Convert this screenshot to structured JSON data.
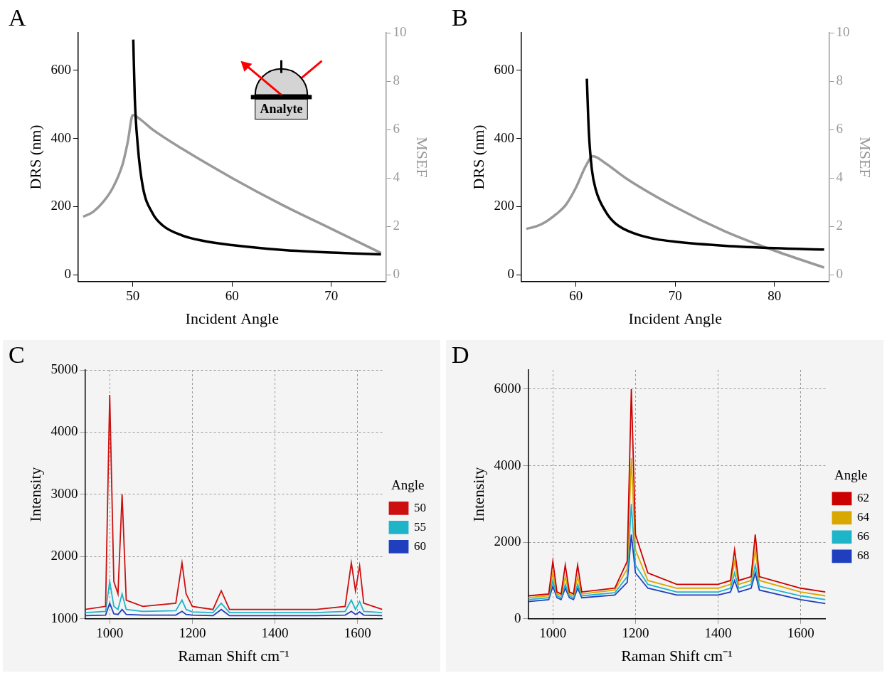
{
  "chart_data": [
    {
      "panel": "A",
      "type": "line",
      "xlabel": "Incident Angle",
      "ylabel": "DRS (nm)",
      "y2label": "MSEF",
      "annotations": [
        "Analyte"
      ],
      "grid": false,
      "xlim": [
        44.5,
        75.5
      ],
      "xticks": [
        50,
        60,
        70
      ],
      "ylim": [
        -20,
        710
      ],
      "yticks": [
        0,
        200,
        400,
        600
      ],
      "y2lim": [
        -0.28,
        10
      ],
      "y2ticks": [
        0,
        2,
        4,
        6,
        8,
        10
      ],
      "series": [
        {
          "color": "#000000",
          "x": [
            50.05,
            50.2,
            50.5,
            51,
            52,
            53,
            55,
            57,
            60,
            65,
            70,
            75
          ],
          "values": [
            690,
            520,
            380,
            260,
            180,
            145,
            115,
            100,
            87,
            73,
            65,
            60
          ]
        },
        {
          "color": "#999999",
          "axis": "y2",
          "x": [
            45,
            46,
            47,
            48,
            49,
            49.5,
            50,
            50.5,
            52,
            55,
            60,
            65,
            70,
            75
          ],
          "values": [
            2.4,
            2.6,
            3.0,
            3.6,
            4.6,
            5.5,
            6.6,
            6.5,
            6.0,
            5.2,
            4.0,
            2.9,
            1.9,
            0.9
          ]
        }
      ]
    },
    {
      "panel": "B",
      "type": "line",
      "xlabel": "Incident Angle",
      "ylabel": "DRS (nm)",
      "y2label": "MSEF",
      "grid": false,
      "xlim": [
        54.5,
        85.5
      ],
      "xticks": [
        60,
        70,
        80
      ],
      "ylim": [
        -20,
        710
      ],
      "yticks": [
        0,
        200,
        400,
        600
      ],
      "y2lim": [
        -0.28,
        10
      ],
      "y2ticks": [
        0,
        2,
        4,
        6,
        8,
        10
      ],
      "series": [
        {
          "color": "#000000",
          "x": [
            61.1,
            61.3,
            61.6,
            62,
            63,
            64,
            66,
            68,
            70,
            75,
            80,
            85
          ],
          "values": [
            575,
            420,
            310,
            250,
            185,
            150,
            120,
            105,
            97,
            85,
            78,
            74
          ]
        },
        {
          "color": "#999999",
          "axis": "y2",
          "x": [
            55,
            56,
            57,
            58,
            59,
            60,
            61,
            61.7,
            63,
            65,
            70,
            75,
            80,
            85
          ],
          "values": [
            1.9,
            2.0,
            2.2,
            2.5,
            2.9,
            3.6,
            4.5,
            4.9,
            4.6,
            4.0,
            2.8,
            1.8,
            1.0,
            0.3
          ]
        }
      ]
    },
    {
      "panel": "C",
      "type": "line",
      "xlabel": "Raman Shift cm⁻¹",
      "ylabel": "Intensity",
      "legend_title": "Angle",
      "legend": "right",
      "grid": true,
      "xlim": [
        940,
        1660
      ],
      "xticks": [
        1000,
        1200,
        1400,
        1600
      ],
      "ylim": [
        1000,
        5000
      ],
      "yticks": [
        1000,
        2000,
        3000,
        4000,
        5000
      ],
      "x": [
        940,
        990,
        1000,
        1010,
        1020,
        1030,
        1040,
        1080,
        1160,
        1175,
        1185,
        1200,
        1250,
        1270,
        1290,
        1400,
        1500,
        1570,
        1585,
        1595,
        1605,
        1615,
        1660
      ],
      "series": [
        {
          "name": "50",
          "color": "#cc1010",
          "values": [
            1150,
            1200,
            4600,
            1600,
            1400,
            3000,
            1300,
            1200,
            1250,
            1900,
            1400,
            1200,
            1150,
            1450,
            1150,
            1150,
            1150,
            1200,
            1900,
            1450,
            1850,
            1250,
            1150
          ]
        },
        {
          "name": "55",
          "color": "#1fb5c9",
          "values": [
            1100,
            1120,
            1600,
            1200,
            1150,
            1400,
            1150,
            1120,
            1130,
            1300,
            1150,
            1110,
            1100,
            1250,
            1100,
            1100,
            1100,
            1120,
            1300,
            1150,
            1280,
            1120,
            1100
          ]
        },
        {
          "name": "60",
          "color": "#1f3fbf",
          "values": [
            1050,
            1060,
            1250,
            1080,
            1070,
            1150,
            1070,
            1060,
            1060,
            1120,
            1070,
            1060,
            1050,
            1150,
            1050,
            1050,
            1050,
            1060,
            1120,
            1070,
            1110,
            1060,
            1050
          ]
        }
      ]
    },
    {
      "panel": "D",
      "type": "line",
      "xlabel": "Raman Shift cm⁻¹",
      "ylabel": "Intensity",
      "legend_title": "Angle",
      "legend": "right",
      "grid": true,
      "xlim": [
        940,
        1660
      ],
      "xticks": [
        1000,
        1200,
        1400,
        1600
      ],
      "ylim": [
        0,
        6500
      ],
      "yticks": [
        0,
        2000,
        4000,
        6000
      ],
      "x": [
        940,
        990,
        1000,
        1010,
        1020,
        1030,
        1040,
        1050,
        1060,
        1070,
        1150,
        1180,
        1190,
        1200,
        1230,
        1300,
        1400,
        1430,
        1440,
        1450,
        1480,
        1490,
        1500,
        1600,
        1660
      ],
      "series": [
        {
          "name": "62",
          "color": "#cc0000",
          "values": [
            600,
            650,
            1500,
            700,
            650,
            1400,
            700,
            650,
            1400,
            700,
            800,
            1500,
            6000,
            2200,
            1200,
            900,
            900,
            1000,
            1800,
            1000,
            1100,
            2200,
            1100,
            800,
            700
          ]
        },
        {
          "name": "64",
          "color": "#d9a800",
          "values": [
            550,
            600,
            1200,
            650,
            600,
            1100,
            650,
            600,
            1100,
            650,
            750,
            1300,
            4200,
            1800,
            1000,
            800,
            800,
            900,
            1500,
            900,
            1000,
            1800,
            1000,
            700,
            600
          ]
        },
        {
          "name": "66",
          "color": "#1fb5c9",
          "values": [
            500,
            550,
            1000,
            600,
            550,
            900,
            600,
            550,
            900,
            600,
            680,
            1100,
            3000,
            1400,
            900,
            700,
            700,
            800,
            1200,
            800,
            900,
            1400,
            850,
            600,
            500
          ]
        },
        {
          "name": "68",
          "color": "#1f3fbf",
          "values": [
            450,
            500,
            850,
            550,
            500,
            800,
            550,
            500,
            800,
            550,
            620,
            950,
            2200,
            1200,
            800,
            620,
            620,
            700,
            1000,
            700,
            800,
            1200,
            750,
            500,
            400
          ]
        }
      ]
    }
  ]
}
